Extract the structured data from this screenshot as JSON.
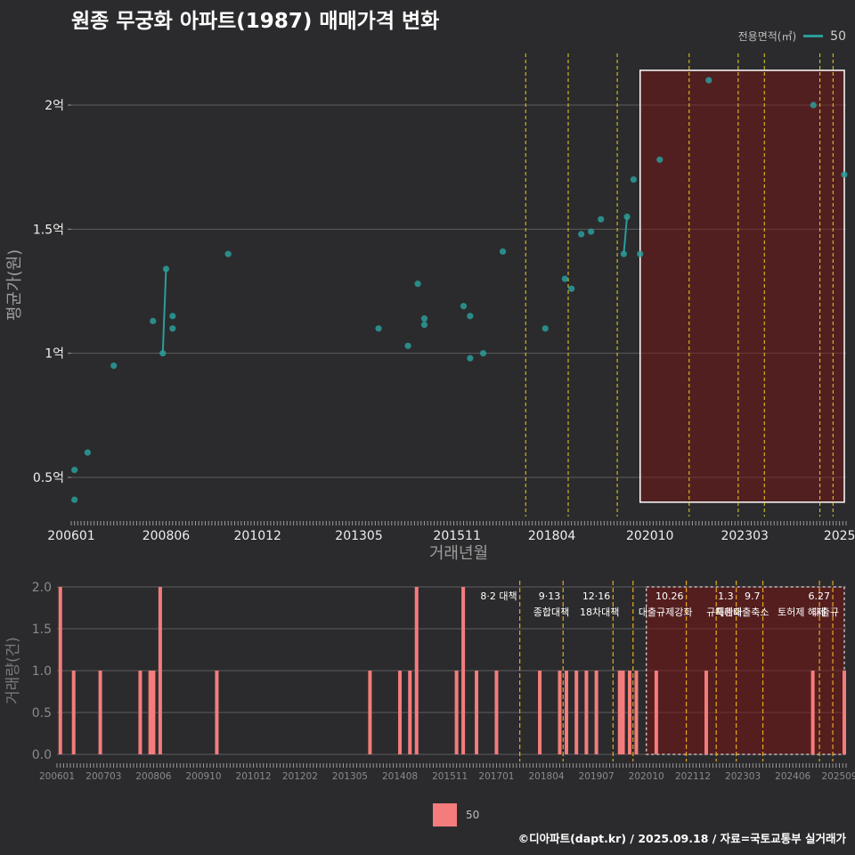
{
  "title": "원종 무궁화 아파트(1987) 매매가격 변화",
  "legend_top": {
    "title": "전용면적(㎡)",
    "label": "50",
    "color": "#2a9d9a"
  },
  "legend_bottom": {
    "label": "50",
    "color": "#f47c7c"
  },
  "footer": "©디아파트(dapt.kr) / 2025.09.18 / 자료=국토교통부 실거래가",
  "chart_data": [
    {
      "type": "scatter",
      "title": "원종 무궁화 아파트(1987) 매매가격 변화",
      "xlabel": "거래년월",
      "ylabel": "평균가(원)",
      "ylim": [
        0.3,
        2.2
      ],
      "xlim": [
        2006.0,
        2025.75
      ],
      "x_tick_labels": [
        {
          "x": 2006.0,
          "label": "200601"
        },
        {
          "x": 2008.417,
          "label": "200806"
        },
        {
          "x": 2010.75,
          "label": "201012"
        },
        {
          "x": 2013.333,
          "label": "201305"
        },
        {
          "x": 2015.833,
          "label": "201511"
        },
        {
          "x": 2018.25,
          "label": "201804"
        },
        {
          "x": 2020.75,
          "label": "202010"
        },
        {
          "x": 2023.167,
          "label": "202303"
        },
        {
          "x": 2025.583,
          "label": "2025"
        }
      ],
      "y_ticks": [
        {
          "y": 0.5,
          "label": "0.5억"
        },
        {
          "y": 1.0,
          "label": "1억"
        },
        {
          "y": 1.5,
          "label": "1.5억"
        },
        {
          "y": 2.0,
          "label": "2억"
        }
      ],
      "series": [
        {
          "name": "50",
          "color": "#2a9d9a",
          "points": [
            {
              "x": 2006.083,
              "y": 0.41
            },
            {
              "x": 2006.083,
              "y": 0.53
            },
            {
              "x": 2006.417,
              "y": 0.6
            },
            {
              "x": 2007.083,
              "y": 0.95
            },
            {
              "x": 2008.083,
              "y": 1.13
            },
            {
              "x": 2008.333,
              "y": 1.0
            },
            {
              "x": 2008.417,
              "y": 1.34
            },
            {
              "x": 2008.583,
              "y": 1.15
            },
            {
              "x": 2008.583,
              "y": 1.1
            },
            {
              "x": 2010.0,
              "y": 1.4
            },
            {
              "x": 2013.833,
              "y": 1.1
            },
            {
              "x": 2014.583,
              "y": 1.03
            },
            {
              "x": 2014.833,
              "y": 1.28
            },
            {
              "x": 2015.0,
              "y": 1.14
            },
            {
              "x": 2015.0,
              "y": 1.115
            },
            {
              "x": 2016.0,
              "y": 1.19
            },
            {
              "x": 2016.167,
              "y": 1.15
            },
            {
              "x": 2016.167,
              "y": 0.98
            },
            {
              "x": 2016.5,
              "y": 1.0
            },
            {
              "x": 2017.0,
              "y": 1.41
            },
            {
              "x": 2018.083,
              "y": 1.1
            },
            {
              "x": 2018.583,
              "y": 1.3
            },
            {
              "x": 2018.75,
              "y": 1.26
            },
            {
              "x": 2019.0,
              "y": 1.48
            },
            {
              "x": 2019.25,
              "y": 1.49
            },
            {
              "x": 2019.5,
              "y": 1.54
            },
            {
              "x": 2020.083,
              "y": 1.4
            },
            {
              "x": 2020.167,
              "y": 1.55
            },
            {
              "x": 2020.333,
              "y": 1.7
            },
            {
              "x": 2020.5,
              "y": 1.4
            },
            {
              "x": 2021.0,
              "y": 1.78
            },
            {
              "x": 2022.25,
              "y": 2.1
            },
            {
              "x": 2024.917,
              "y": 2.0
            },
            {
              "x": 2025.75,
              "y": 1.72
            }
          ],
          "connected_segments": [
            [
              {
                "x": 2008.333,
                "y": 1.0
              },
              {
                "x": 2008.417,
                "y": 1.34
              }
            ],
            [
              {
                "x": 2020.083,
                "y": 1.4
              },
              {
                "x": 2020.167,
                "y": 1.55
              }
            ]
          ]
        }
      ],
      "vlines": [
        2017.583,
        2018.667,
        2019.917,
        2021.75,
        2023.0,
        2023.667,
        2025.083,
        2025.417
      ],
      "highlight_range": {
        "x": [
          2020.5,
          2025.75
        ],
        "y": [
          0.4,
          2.14
        ]
      }
    },
    {
      "type": "bar",
      "ylabel": "거래량(건)",
      "ylim": [
        0,
        2.0
      ],
      "xlim": [
        2006.0,
        2025.75
      ],
      "x_tick_labels": [
        {
          "x": 2006.0,
          "label": "200601"
        },
        {
          "x": 2007.167,
          "label": "200703"
        },
        {
          "x": 2008.417,
          "label": "200806"
        },
        {
          "x": 2009.667,
          "label": "200910"
        },
        {
          "x": 2010.917,
          "label": "201012"
        },
        {
          "x": 2012.083,
          "label": "201202"
        },
        {
          "x": 2013.333,
          "label": "201305"
        },
        {
          "x": 2014.583,
          "label": "201408"
        },
        {
          "x": 2015.833,
          "label": "201511"
        },
        {
          "x": 2017.0,
          "label": "201701"
        },
        {
          "x": 2018.25,
          "label": "201804"
        },
        {
          "x": 2019.5,
          "label": "201907"
        },
        {
          "x": 2020.75,
          "label": "202010"
        },
        {
          "x": 2021.917,
          "label": "202112"
        },
        {
          "x": 2023.167,
          "label": "202303"
        },
        {
          "x": 2024.417,
          "label": "202406"
        },
        {
          "x": 2025.583,
          "label": "202509"
        }
      ],
      "y_ticks": [
        {
          "y": 0.0,
          "label": "0.0"
        },
        {
          "y": 0.5,
          "label": "0.5"
        },
        {
          "y": 1.0,
          "label": "1.0"
        },
        {
          "y": 1.5,
          "label": "1.5"
        },
        {
          "y": 2.0,
          "label": "2.0"
        }
      ],
      "series": [
        {
          "name": "50",
          "color": "#f47c7c",
          "bars": [
            {
              "x": 2006.083,
              "y": 2
            },
            {
              "x": 2006.417,
              "y": 1
            },
            {
              "x": 2007.083,
              "y": 1
            },
            {
              "x": 2008.083,
              "y": 1
            },
            {
              "x": 2008.333,
              "y": 1
            },
            {
              "x": 2008.417,
              "y": 1
            },
            {
              "x": 2008.583,
              "y": 2
            },
            {
              "x": 2010.0,
              "y": 1
            },
            {
              "x": 2013.833,
              "y": 1
            },
            {
              "x": 2014.583,
              "y": 1
            },
            {
              "x": 2014.833,
              "y": 1
            },
            {
              "x": 2015.0,
              "y": 2
            },
            {
              "x": 2016.0,
              "y": 1
            },
            {
              "x": 2016.167,
              "y": 2
            },
            {
              "x": 2016.5,
              "y": 1
            },
            {
              "x": 2017.0,
              "y": 1
            },
            {
              "x": 2018.083,
              "y": 1
            },
            {
              "x": 2018.583,
              "y": 1
            },
            {
              "x": 2018.75,
              "y": 1
            },
            {
              "x": 2019.0,
              "y": 1
            },
            {
              "x": 2019.25,
              "y": 1
            },
            {
              "x": 2019.5,
              "y": 1
            },
            {
              "x": 2020.083,
              "y": 1
            },
            {
              "x": 2020.167,
              "y": 1
            },
            {
              "x": 2020.333,
              "y": 1
            },
            {
              "x": 2020.5,
              "y": 1
            },
            {
              "x": 2021.0,
              "y": 1
            },
            {
              "x": 2022.25,
              "y": 1
            },
            {
              "x": 2024.917,
              "y": 1
            },
            {
              "x": 2025.75,
              "y": 1
            }
          ]
        }
      ],
      "vlines": [
        2017.583,
        2018.667,
        2019.917,
        2020.417,
        2021.75,
        2022.5,
        2023.0,
        2023.667,
        2025.083,
        2025.417
      ],
      "highlight_range": {
        "x": [
          2020.75,
          2025.75
        ],
        "y": [
          0,
          2.0
        ]
      },
      "annotations": [
        {
          "x": 2017.583,
          "line1": "8·2 대책",
          "line2": ""
        },
        {
          "x": 2018.667,
          "line1": "9·13",
          "line2": "종합대책"
        },
        {
          "x": 2019.917,
          "line1": "12·16",
          "line2": "18차대책"
        },
        {
          "x": 2021.75,
          "line1": "10.26",
          "line2": "대출규제강화"
        },
        {
          "x": 2023.0,
          "line1": "1.3",
          "line2": "규제완화"
        },
        {
          "x": 2023.667,
          "line1": "9.7",
          "line2": "특례대출축소"
        },
        {
          "x": 2025.083,
          "line1": "",
          "line2": "토허제 해제"
        },
        {
          "x": 2025.417,
          "line1": "6.27",
          "line2": "대출규"
        }
      ]
    }
  ]
}
